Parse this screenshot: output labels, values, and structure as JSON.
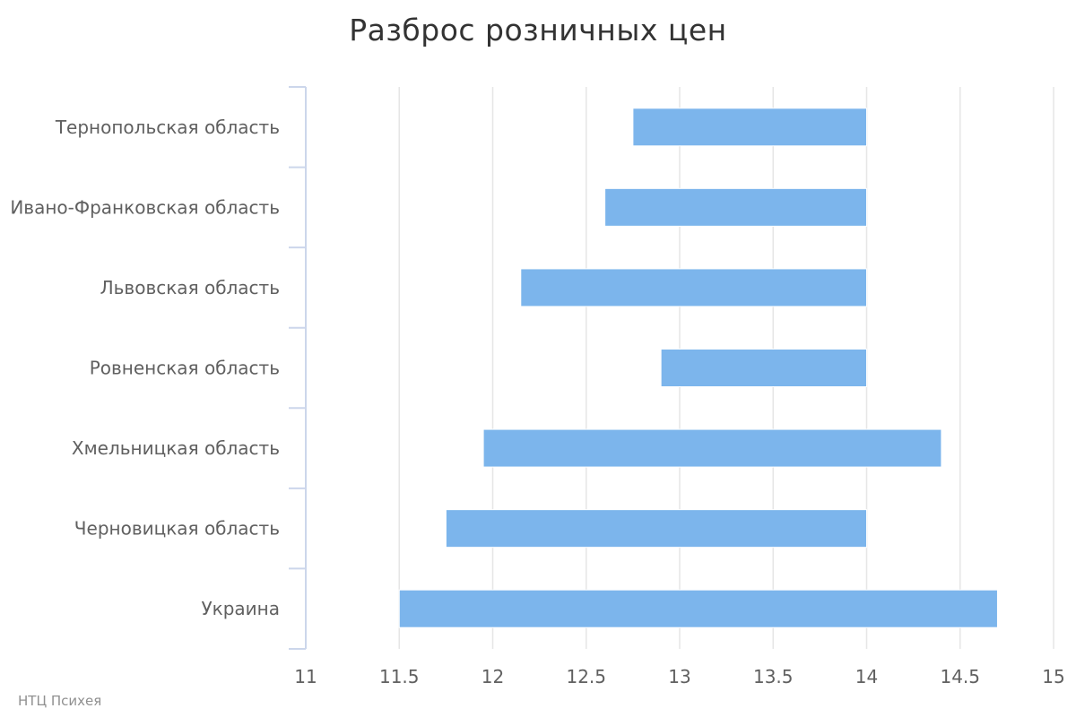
{
  "chart_data": {
    "type": "bar",
    "subtype": "columnrange-horizontal",
    "title": "Разброс розничных цен",
    "categories": [
      "Тернопольская область",
      "Ивано-Франковская область",
      "Львовская область",
      "Ровненская область",
      "Хмельницкая область",
      "Черновицкая область",
      "Украина"
    ],
    "series": [
      {
        "low": [
          12.75,
          12.6,
          12.15,
          12.9,
          11.95,
          11.75,
          11.5
        ],
        "high": [
          14.0,
          14.0,
          14.0,
          14.0,
          14.4,
          14.0,
          14.7
        ]
      }
    ],
    "xlim": [
      11,
      15
    ],
    "tick_labels": [
      "11",
      "11.5",
      "12",
      "12.5",
      "13",
      "13.5",
      "14",
      "14.5",
      "15"
    ],
    "grid": true,
    "legend": "none",
    "bar_color": "#7cb5ec"
  },
  "credits": "НТЦ Психея"
}
